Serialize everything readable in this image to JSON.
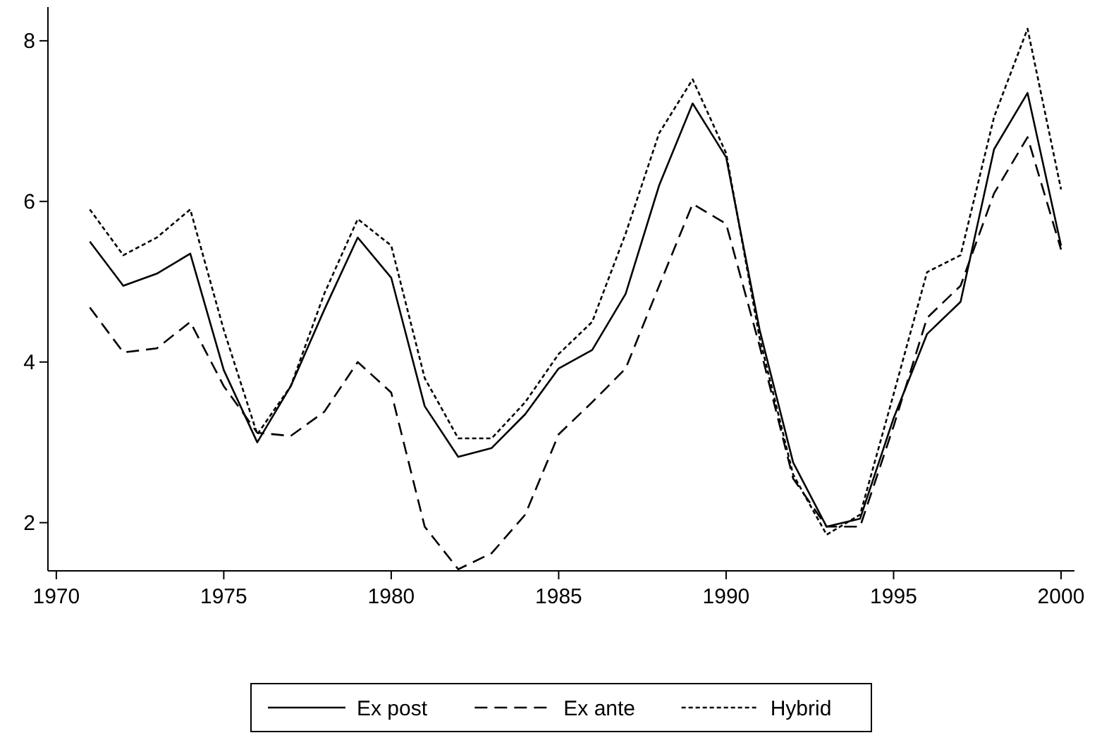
{
  "chart_data": {
    "type": "line",
    "x": [
      1971,
      1972,
      1973,
      1974,
      1975,
      1976,
      1977,
      1978,
      1979,
      1980,
      1981,
      1982,
      1983,
      1984,
      1985,
      1986,
      1987,
      1988,
      1989,
      1990,
      1991,
      1992,
      1993,
      1994,
      1995,
      1996,
      1997,
      1998,
      1999,
      2000
    ],
    "series": [
      {
        "name": "Ex post",
        "color": "#000000",
        "line_style": "solid",
        "values": [
          5.5,
          4.95,
          5.1,
          5.35,
          3.9,
          3.0,
          3.7,
          4.65,
          5.55,
          5.05,
          3.45,
          2.82,
          2.93,
          3.35,
          3.92,
          4.15,
          4.85,
          6.2,
          7.22,
          6.55,
          4.4,
          2.75,
          1.95,
          2.05,
          3.3,
          4.35,
          4.75,
          6.65,
          7.35,
          5.45
        ]
      },
      {
        "name": "Ex ante",
        "color": "#000000",
        "line_style": "dashed",
        "values": [
          4.68,
          4.12,
          4.17,
          4.5,
          3.7,
          3.12,
          3.08,
          3.38,
          4.0,
          3.62,
          1.95,
          1.42,
          1.62,
          2.1,
          3.1,
          3.5,
          3.92,
          4.95,
          5.97,
          5.72,
          4.2,
          2.55,
          1.95,
          1.95,
          3.2,
          4.55,
          4.95,
          6.1,
          6.8,
          5.4
        ]
      },
      {
        "name": "Hybrid",
        "color": "#000000",
        "line_style": "dotted",
        "values": [
          5.9,
          5.33,
          5.55,
          5.9,
          4.4,
          3.1,
          3.7,
          4.85,
          5.78,
          5.45,
          3.8,
          3.05,
          3.05,
          3.5,
          4.1,
          4.5,
          5.6,
          6.85,
          7.52,
          6.6,
          4.3,
          2.6,
          1.85,
          2.1,
          3.6,
          5.12,
          5.33,
          7.05,
          8.15,
          6.15
        ]
      }
    ],
    "xlim": [
      1969.75,
      2000.4
    ],
    "xticks": [
      1970,
      1975,
      1980,
      1985,
      1990,
      1995,
      2000
    ],
    "ylim": [
      1.4,
      8.42
    ],
    "yticks": [
      2,
      4,
      6,
      8
    ],
    "grid": false,
    "legend": "bottom"
  }
}
